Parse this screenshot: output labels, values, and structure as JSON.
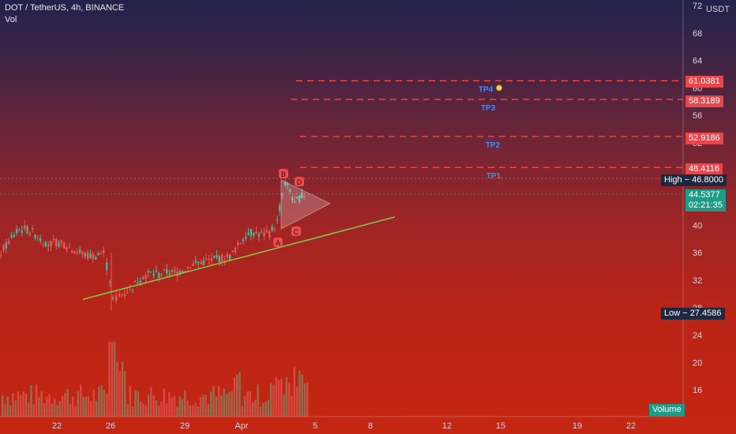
{
  "header": {
    "symbol_line": "DOT / TetherUS, 4h, BINANCE",
    "indicator": "Vol"
  },
  "price_axis": {
    "unit": "USDT",
    "ticks": [
      "72",
      "68",
      "64",
      "60",
      "56",
      "52",
      "48",
      "44",
      "40",
      "36",
      "32",
      "28",
      "24",
      "20",
      "16"
    ]
  },
  "time_axis": {
    "ticks": [
      "22",
      "26",
      "29",
      "Apr",
      "5",
      "8",
      "12",
      "15",
      "19",
      "22"
    ]
  },
  "badges": {
    "tp4_price": "61.0381",
    "tp3_price": "58.3189",
    "tp2_price": "52.9186",
    "tp1_price": "48.4116",
    "high_label": "High",
    "high_price": "46.8000",
    "current_price": "44.5377",
    "countdown": "02:21:35",
    "low_label": "Low",
    "low_price": "27.4586",
    "volume_label": "Volume"
  },
  "annotations": {
    "tp1": "TP1",
    "tp2": "TP2",
    "tp3": "TP3",
    "tp4": "TP4",
    "points": [
      "A",
      "B",
      "C",
      "D"
    ]
  },
  "chart_data": {
    "type": "candlestick",
    "symbol": "DOT / TetherUS",
    "interval": "4h",
    "exchange": "BINANCE",
    "ylim": [
      14,
      72
    ],
    "target_levels": [
      {
        "name": "TP1",
        "price": 48.4116
      },
      {
        "name": "TP2",
        "price": 52.9186
      },
      {
        "name": "TP3",
        "price": 58.3189
      },
      {
        "name": "TP4",
        "price": 61.0381
      }
    ],
    "high": 46.8,
    "low": 27.4586,
    "last_price": 44.5377,
    "trendline": [
      {
        "date": "Mar 24",
        "price": 29.2
      },
      {
        "date": "Apr 8",
        "price": 41.2
      }
    ],
    "colors": {
      "up": "#26a69a",
      "down": "#ef5350",
      "target": "#ff4d4d",
      "trendline": "#7ccf4a"
    }
  }
}
